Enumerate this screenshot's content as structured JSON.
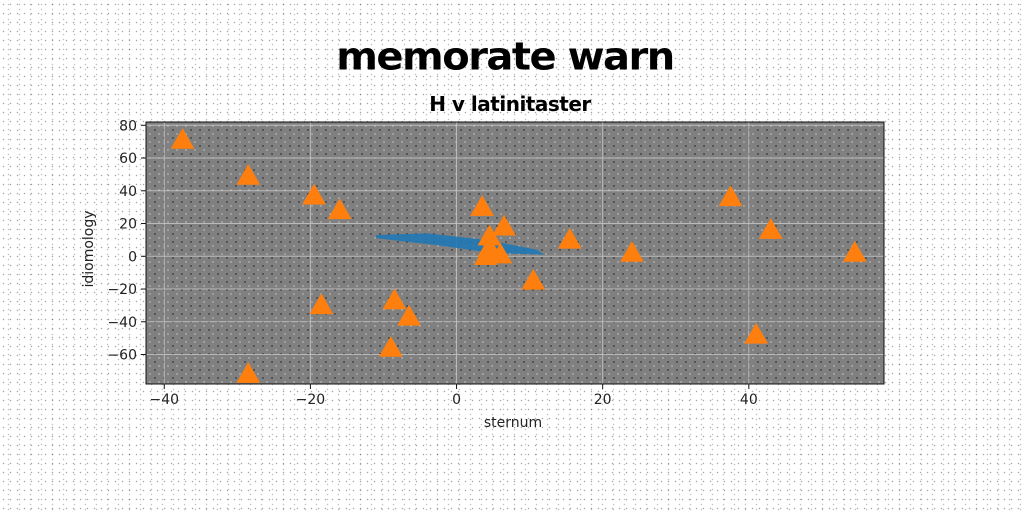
{
  "chart_data": {
    "type": "scatter",
    "title": "memorate warn",
    "subtitle": "H v latinitaster",
    "xlabel": "sternum",
    "ylabel": "idiomology",
    "xlim": [
      -42.5,
      58.5
    ],
    "ylim": [
      -78,
      82
    ],
    "xticks": [
      -40,
      -20,
      0,
      20,
      40
    ],
    "yticks": [
      -60,
      -40,
      -20,
      0,
      20,
      40,
      60,
      80
    ],
    "grid": true,
    "background_color": "#808080",
    "grid_color": "#c8c8c8",
    "marker_color": "#ff7f0e",
    "band_color": "#1f77b4",
    "band": {
      "points": [
        [
          -11,
          13
        ],
        [
          -4,
          14
        ],
        [
          4,
          10
        ],
        [
          11,
          4
        ],
        [
          12,
          1
        ],
        [
          5,
          2
        ],
        [
          -3,
          7
        ],
        [
          -11,
          11
        ]
      ]
    },
    "points": [
      {
        "x": -37.5,
        "y": 71
      },
      {
        "x": -28.5,
        "y": 49
      },
      {
        "x": -19.5,
        "y": 37
      },
      {
        "x": -16,
        "y": 28
      },
      {
        "x": 3.5,
        "y": 30
      },
      {
        "x": 6.5,
        "y": 18
      },
      {
        "x": 4.5,
        "y": 12
      },
      {
        "x": 4.5,
        "y": 5
      },
      {
        "x": 4,
        "y": 0
      },
      {
        "x": 6,
        "y": 1
      },
      {
        "x": 15.5,
        "y": 10
      },
      {
        "x": 24,
        "y": 2
      },
      {
        "x": 37.5,
        "y": 36
      },
      {
        "x": 43,
        "y": 16
      },
      {
        "x": 54.5,
        "y": 2
      },
      {
        "x": 10.5,
        "y": -15
      },
      {
        "x": -18.5,
        "y": -30
      },
      {
        "x": -8.5,
        "y": -27
      },
      {
        "x": -6.5,
        "y": -37
      },
      {
        "x": -9,
        "y": -56
      },
      {
        "x": -28.5,
        "y": -72
      },
      {
        "x": 41,
        "y": -48
      }
    ]
  }
}
